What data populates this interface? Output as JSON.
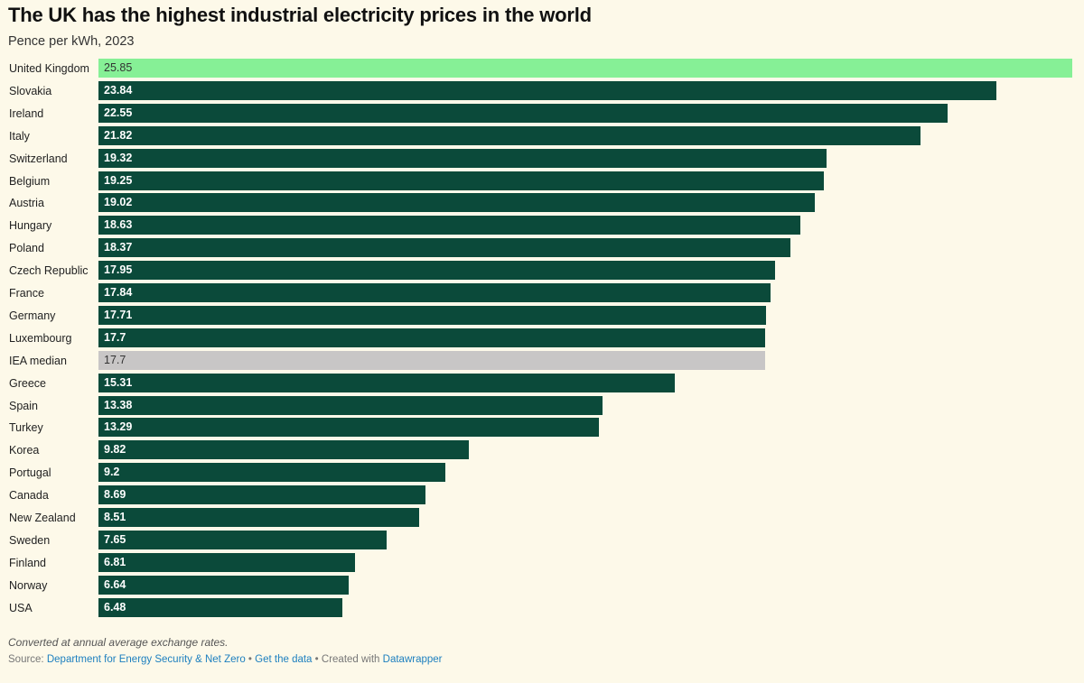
{
  "title": "The UK has the highest industrial electricity prices in the world",
  "subtitle": "Pence per kWh, 2023",
  "chart_data": {
    "type": "bar",
    "orientation": "horizontal",
    "title": "The UK has the highest industrial electricity prices in the world",
    "subtitle": "Pence per kWh, 2023",
    "xlim": [
      0,
      25.85
    ],
    "categories": [
      "United Kingdom",
      "Slovakia",
      "Ireland",
      "Italy",
      "Switzerland",
      "Belgium",
      "Austria",
      "Hungary",
      "Poland",
      "Czech Republic",
      "France",
      "Germany",
      "Luxembourg",
      "IEA median",
      "Greece",
      "Spain",
      "Turkey",
      "Korea",
      "Portugal",
      "Canada",
      "New Zealand",
      "Sweden",
      "Finland",
      "Norway",
      "USA"
    ],
    "values": [
      25.85,
      23.84,
      22.55,
      21.82,
      19.32,
      19.25,
      19.02,
      18.63,
      18.37,
      17.95,
      17.84,
      17.71,
      17.7,
      17.7,
      15.31,
      13.38,
      13.29,
      9.82,
      9.2,
      8.69,
      8.51,
      7.65,
      6.81,
      6.64,
      6.48
    ],
    "value_labels": [
      "25.85",
      "23.84",
      "22.55",
      "21.82",
      "19.32",
      "19.25",
      "19.02",
      "18.63",
      "18.37",
      "17.95",
      "17.84",
      "17.71",
      "17.7",
      "17.7",
      "15.31",
      "13.38",
      "13.29",
      "9.82",
      "9.2",
      "8.69",
      "8.51",
      "7.65",
      "6.81",
      "6.64",
      "6.48"
    ],
    "highlight": {
      "United Kingdom": "highlight",
      "IEA median": "median"
    },
    "colors": {
      "default": "#0b4a3a",
      "highlight": "#86f096",
      "median": "#c8c6c6",
      "default_text": "#ffffff",
      "highlight_text": "#333333"
    }
  },
  "footer": {
    "note": "Converted at annual average exchange rates.",
    "source_label": "Source:",
    "source_link": "Department for Energy Security & Net Zero",
    "separator1": "•",
    "get_data": "Get the data",
    "separator2": "•",
    "created_with": "Created with",
    "datawrapper": "Datawrapper"
  }
}
